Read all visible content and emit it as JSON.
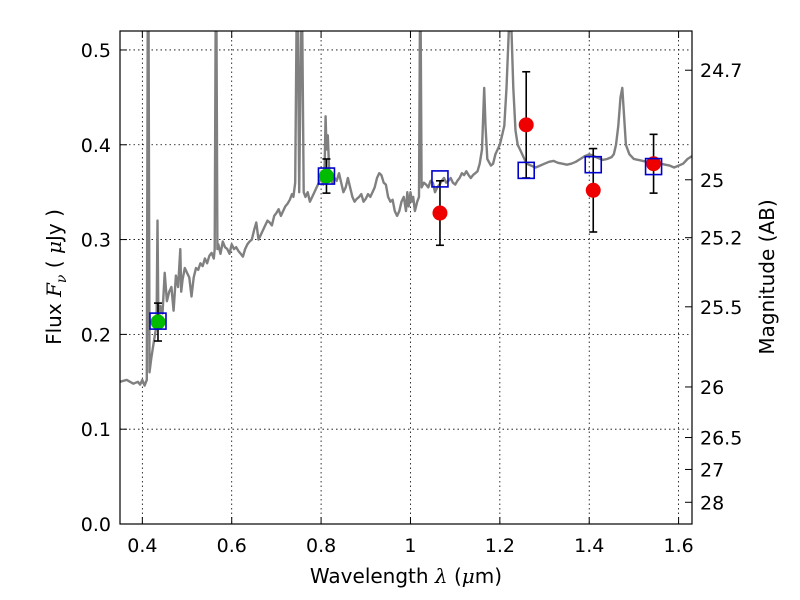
{
  "chart_data": {
    "type": "scatter",
    "title": "",
    "xlabel": {
      "prefix": "Wavelength ",
      "symbol": "λ",
      "unit_open": " (",
      "unit_math": "μ",
      "unit_rest": "m)"
    },
    "ylabel": {
      "prefix": "Flux ",
      "symbol": "F",
      "subscript": "ν",
      "unit_open": " ( ",
      "unit_math": "μ",
      "unit_rest": "Jy )"
    },
    "y2label": "Magnitude (AB)",
    "xlim": [
      0.35,
      1.63
    ],
    "ylim": [
      0.0,
      0.52
    ],
    "grid": true,
    "x_ticks": [
      {
        "value": 0.4,
        "label": "0.4"
      },
      {
        "value": 0.6,
        "label": "0.6"
      },
      {
        "value": 0.8,
        "label": "0.8"
      },
      {
        "value": 1.0,
        "label": "1"
      },
      {
        "value": 1.2,
        "label": "1.2"
      },
      {
        "value": 1.4,
        "label": "1.4"
      },
      {
        "value": 1.6,
        "label": "1.6"
      }
    ],
    "y_ticks": [
      {
        "value": 0.0,
        "label": "0.0"
      },
      {
        "value": 0.1,
        "label": "0.1"
      },
      {
        "value": 0.2,
        "label": "0.2"
      },
      {
        "value": 0.3,
        "label": "0.3"
      },
      {
        "value": 0.4,
        "label": "0.4"
      },
      {
        "value": 0.5,
        "label": "0.5"
      }
    ],
    "y2_ticks": [
      {
        "mag": 24.7,
        "label": "24.7"
      },
      {
        "mag": 25,
        "label": "25"
      },
      {
        "mag": 25.2,
        "label": "25.2"
      },
      {
        "mag": 25.5,
        "label": "25.5"
      },
      {
        "mag": 26,
        "label": "26"
      },
      {
        "mag": 26.5,
        "label": "26.5"
      },
      {
        "mag": 27,
        "label": "27"
      },
      {
        "mag": 28,
        "label": "28"
      }
    ],
    "series": [
      {
        "kind": "model_spectrum",
        "color": "#808080",
        "points": [
          [
            0.35,
            0.15
          ],
          [
            0.365,
            0.152
          ],
          [
            0.38,
            0.148
          ],
          [
            0.39,
            0.15
          ],
          [
            0.395,
            0.147
          ],
          [
            0.4,
            0.152
          ],
          [
            0.405,
            0.146
          ],
          [
            0.41,
            0.152
          ],
          [
            0.412,
            0.52
          ],
          [
            0.414,
            0.52
          ],
          [
            0.416,
            0.16
          ],
          [
            0.42,
            0.175
          ],
          [
            0.425,
            0.19
          ],
          [
            0.43,
            0.205
          ],
          [
            0.432,
            0.215
          ],
          [
            0.434,
            0.32
          ],
          [
            0.436,
            0.21
          ],
          [
            0.44,
            0.23
          ],
          [
            0.445,
            0.222
          ],
          [
            0.45,
            0.265
          ],
          [
            0.455,
            0.235
          ],
          [
            0.46,
            0.245
          ],
          [
            0.465,
            0.25
          ],
          [
            0.47,
            0.225
          ],
          [
            0.475,
            0.262
          ],
          [
            0.48,
            0.25
          ],
          [
            0.485,
            0.29
          ],
          [
            0.487,
            0.245
          ],
          [
            0.49,
            0.258
          ],
          [
            0.495,
            0.27
          ],
          [
            0.5,
            0.265
          ],
          [
            0.505,
            0.26
          ],
          [
            0.51,
            0.24
          ],
          [
            0.515,
            0.26
          ],
          [
            0.52,
            0.27
          ],
          [
            0.525,
            0.268
          ],
          [
            0.53,
            0.275
          ],
          [
            0.535,
            0.272
          ],
          [
            0.54,
            0.28
          ],
          [
            0.545,
            0.275
          ],
          [
            0.55,
            0.283
          ],
          [
            0.555,
            0.286
          ],
          [
            0.56,
            0.28
          ],
          [
            0.562,
            0.29
          ],
          [
            0.564,
            0.52
          ],
          [
            0.566,
            0.52
          ],
          [
            0.568,
            0.29
          ],
          [
            0.57,
            0.295
          ],
          [
            0.575,
            0.285
          ],
          [
            0.58,
            0.298
          ],
          [
            0.585,
            0.292
          ],
          [
            0.59,
            0.29
          ],
          [
            0.595,
            0.285
          ],
          [
            0.6,
            0.295
          ],
          [
            0.605,
            0.29
          ],
          [
            0.61,
            0.292
          ],
          [
            0.615,
            0.288
          ],
          [
            0.62,
            0.285
          ],
          [
            0.625,
            0.282
          ],
          [
            0.63,
            0.29
          ],
          [
            0.635,
            0.295
          ],
          [
            0.64,
            0.298
          ],
          [
            0.645,
            0.3
          ],
          [
            0.65,
            0.31
          ],
          [
            0.655,
            0.318
          ],
          [
            0.66,
            0.3
          ],
          [
            0.665,
            0.305
          ],
          [
            0.67,
            0.31
          ],
          [
            0.675,
            0.315
          ],
          [
            0.68,
            0.32
          ],
          [
            0.685,
            0.318
          ],
          [
            0.69,
            0.315
          ],
          [
            0.695,
            0.325
          ],
          [
            0.7,
            0.328
          ],
          [
            0.705,
            0.332
          ],
          [
            0.71,
            0.325
          ],
          [
            0.715,
            0.33
          ],
          [
            0.72,
            0.335
          ],
          [
            0.725,
            0.338
          ],
          [
            0.73,
            0.342
          ],
          [
            0.735,
            0.348
          ],
          [
            0.738,
            0.345
          ],
          [
            0.742,
            0.36
          ],
          [
            0.745,
            0.52
          ],
          [
            0.748,
            0.52
          ],
          [
            0.751,
            0.35
          ],
          [
            0.755,
            0.52
          ],
          [
            0.758,
            0.52
          ],
          [
            0.761,
            0.35
          ],
          [
            0.765,
            0.345
          ],
          [
            0.77,
            0.35
          ],
          [
            0.775,
            0.34
          ],
          [
            0.78,
            0.345
          ],
          [
            0.785,
            0.35
          ],
          [
            0.79,
            0.355
          ],
          [
            0.795,
            0.36
          ],
          [
            0.8,
            0.365
          ],
          [
            0.805,
            0.358
          ],
          [
            0.808,
            0.38
          ],
          [
            0.81,
            0.43
          ],
          [
            0.812,
            0.395
          ],
          [
            0.815,
            0.41
          ],
          [
            0.818,
            0.375
          ],
          [
            0.82,
            0.368
          ],
          [
            0.825,
            0.36
          ],
          [
            0.83,
            0.365
          ],
          [
            0.835,
            0.362
          ],
          [
            0.84,
            0.37
          ],
          [
            0.845,
            0.36
          ],
          [
            0.85,
            0.35
          ],
          [
            0.855,
            0.355
          ],
          [
            0.86,
            0.365
          ],
          [
            0.865,
            0.355
          ],
          [
            0.87,
            0.345
          ],
          [
            0.875,
            0.34
          ],
          [
            0.88,
            0.343
          ],
          [
            0.885,
            0.345
          ],
          [
            0.89,
            0.348
          ],
          [
            0.895,
            0.34
          ],
          [
            0.9,
            0.343
          ],
          [
            0.905,
            0.348
          ],
          [
            0.91,
            0.345
          ],
          [
            0.915,
            0.35
          ],
          [
            0.92,
            0.355
          ],
          [
            0.925,
            0.365
          ],
          [
            0.93,
            0.37
          ],
          [
            0.935,
            0.368
          ],
          [
            0.94,
            0.36
          ],
          [
            0.945,
            0.358
          ],
          [
            0.95,
            0.345
          ],
          [
            0.955,
            0.34
          ],
          [
            0.96,
            0.342
          ],
          [
            0.965,
            0.33
          ],
          [
            0.97,
            0.325
          ],
          [
            0.975,
            0.33
          ],
          [
            0.98,
            0.34
          ],
          [
            0.985,
            0.345
          ],
          [
            0.99,
            0.33
          ],
          [
            0.993,
            0.35
          ],
          [
            0.996,
            0.335
          ],
          [
            1.0,
            0.35
          ],
          [
            1.003,
            0.34
          ],
          [
            1.006,
            0.345
          ],
          [
            1.01,
            0.33
          ],
          [
            1.015,
            0.34
          ],
          [
            1.019,
            0.345
          ],
          [
            1.021,
            0.52
          ],
          [
            1.023,
            0.52
          ],
          [
            1.025,
            0.355
          ],
          [
            1.03,
            0.36
          ],
          [
            1.035,
            0.358
          ],
          [
            1.04,
            0.355
          ],
          [
            1.045,
            0.362
          ],
          [
            1.05,
            0.36
          ],
          [
            1.055,
            0.35
          ],
          [
            1.06,
            0.355
          ],
          [
            1.065,
            0.358
          ],
          [
            1.07,
            0.362
          ],
          [
            1.075,
            0.365
          ],
          [
            1.08,
            0.36
          ],
          [
            1.085,
            0.362
          ],
          [
            1.09,
            0.365
          ],
          [
            1.095,
            0.36
          ],
          [
            1.1,
            0.358
          ],
          [
            1.105,
            0.362
          ],
          [
            1.11,
            0.365
          ],
          [
            1.115,
            0.37
          ],
          [
            1.12,
            0.368
          ],
          [
            1.125,
            0.372
          ],
          [
            1.13,
            0.368
          ],
          [
            1.135,
            0.365
          ],
          [
            1.14,
            0.368
          ],
          [
            1.145,
            0.37
          ],
          [
            1.15,
            0.372
          ],
          [
            1.155,
            0.38
          ],
          [
            1.16,
            0.395
          ],
          [
            1.165,
            0.46
          ],
          [
            1.168,
            0.42
          ],
          [
            1.172,
            0.385
          ],
          [
            1.18,
            0.378
          ],
          [
            1.185,
            0.38
          ],
          [
            1.19,
            0.39
          ],
          [
            1.195,
            0.395
          ],
          [
            1.2,
            0.4
          ],
          [
            1.205,
            0.41
          ],
          [
            1.21,
            0.42
          ],
          [
            1.215,
            0.46
          ],
          [
            1.22,
            0.52
          ],
          [
            1.226,
            0.52
          ],
          [
            1.23,
            0.46
          ],
          [
            1.235,
            0.415
          ],
          [
            1.24,
            0.4
          ],
          [
            1.245,
            0.395
          ],
          [
            1.25,
            0.39
          ],
          [
            1.255,
            0.385
          ],
          [
            1.26,
            0.38
          ],
          [
            1.27,
            0.378
          ],
          [
            1.28,
            0.376
          ],
          [
            1.29,
            0.378
          ],
          [
            1.3,
            0.38
          ],
          [
            1.31,
            0.382
          ],
          [
            1.32,
            0.383
          ],
          [
            1.33,
            0.381
          ],
          [
            1.34,
            0.38
          ],
          [
            1.35,
            0.379
          ],
          [
            1.36,
            0.38
          ],
          [
            1.37,
            0.382
          ],
          [
            1.38,
            0.385
          ],
          [
            1.39,
            0.388
          ],
          [
            1.4,
            0.39
          ],
          [
            1.41,
            0.388
          ],
          [
            1.42,
            0.386
          ],
          [
            1.43,
            0.384
          ],
          [
            1.44,
            0.385
          ],
          [
            1.45,
            0.387
          ],
          [
            1.455,
            0.39
          ],
          [
            1.46,
            0.4
          ],
          [
            1.465,
            0.42
          ],
          [
            1.47,
            0.45
          ],
          [
            1.474,
            0.46
          ],
          [
            1.478,
            0.43
          ],
          [
            1.482,
            0.4
          ],
          [
            1.49,
            0.39
          ],
          [
            1.5,
            0.385
          ],
          [
            1.51,
            0.384
          ],
          [
            1.52,
            0.383
          ],
          [
            1.53,
            0.382
          ],
          [
            1.54,
            0.381
          ],
          [
            1.55,
            0.38
          ],
          [
            1.56,
            0.38
          ],
          [
            1.57,
            0.379
          ],
          [
            1.58,
            0.378
          ],
          [
            1.59,
            0.376
          ],
          [
            1.6,
            0.378
          ],
          [
            1.61,
            0.38
          ],
          [
            1.62,
            0.385
          ],
          [
            1.63,
            0.388
          ]
        ]
      },
      {
        "kind": "model_photometry",
        "marker": "open-square",
        "color": "#0000cc",
        "points": [
          {
            "x": 0.435,
            "y": 0.214
          },
          {
            "x": 0.812,
            "y": 0.367
          },
          {
            "x": 1.066,
            "y": 0.364
          },
          {
            "x": 1.259,
            "y": 0.373
          },
          {
            "x": 1.409,
            "y": 0.379
          },
          {
            "x": 1.544,
            "y": 0.377
          }
        ]
      },
      {
        "kind": "optical_observed",
        "marker": "filled-circle",
        "color": "#00bb00",
        "points": [
          {
            "x": 0.435,
            "y": 0.213,
            "err": 0.02
          },
          {
            "x": 0.812,
            "y": 0.367,
            "err": 0.018
          }
        ]
      },
      {
        "kind": "nir_observed",
        "marker": "filled-circle",
        "color": "#ee0000",
        "points": [
          {
            "x": 1.066,
            "y": 0.328,
            "err": 0.034
          },
          {
            "x": 1.259,
            "y": 0.421,
            "err": 0.056
          },
          {
            "x": 1.409,
            "y": 0.352,
            "err": 0.044
          },
          {
            "x": 1.544,
            "y": 0.38,
            "err": 0.031
          }
        ]
      }
    ]
  }
}
